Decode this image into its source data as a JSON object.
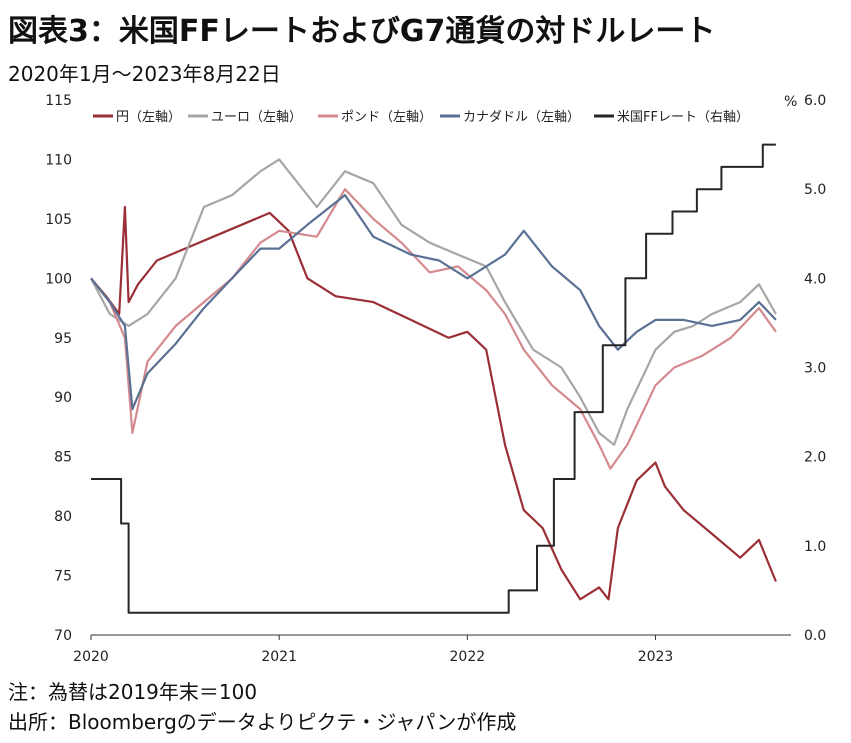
{
  "title": "図表3：米国FFレートおよびG7通貨の対ドルレート",
  "subtitle": "2020年1月〜2023年8月22日",
  "note": "注：為替は2019年末＝100",
  "source": "出所：Bloombergのデータよりピクテ・ジャパンが作成",
  "chart_data": {
    "type": "line",
    "x_labels": [
      "2020",
      "2021",
      "2022",
      "2023"
    ],
    "x_range": [
      "2020-01",
      "2023-08"
    ],
    "y_left": {
      "ylim": [
        70,
        115
      ],
      "ticks": [
        70,
        75,
        80,
        85,
        90,
        95,
        100,
        105,
        110,
        115
      ]
    },
    "y_right": {
      "unit": "%",
      "ylim": [
        0,
        6
      ],
      "ticks": [
        "0.0",
        "1.0",
        "2.0",
        "3.0",
        "4.0",
        "5.0",
        "6.0"
      ]
    },
    "legend_position": "top",
    "grid": false,
    "series": [
      {
        "name": "円（左軸）",
        "axis": "left",
        "color": "#9b2f37",
        "x": [
          2020.0,
          2020.08,
          2020.15,
          2020.18,
          2020.2,
          2020.25,
          2020.35,
          2020.5,
          2020.65,
          2020.8,
          2020.95,
          2021.05,
          2021.15,
          2021.3,
          2021.5,
          2021.7,
          2021.9,
          2022.0,
          2022.1,
          2022.2,
          2022.3,
          2022.4,
          2022.5,
          2022.6,
          2022.7,
          2022.75,
          2022.8,
          2022.9,
          2023.0,
          2023.05,
          2023.15,
          2023.3,
          2023.45,
          2023.55,
          2023.64
        ],
        "values": [
          100,
          98.5,
          97,
          106,
          98,
          99.5,
          101.5,
          102.5,
          103.5,
          104.5,
          105.5,
          104,
          100,
          98.5,
          98,
          96.5,
          95,
          95.5,
          94,
          86,
          80.5,
          79,
          75.5,
          73,
          74,
          73,
          79,
          83,
          84.5,
          82.5,
          80.5,
          78.5,
          76.5,
          78,
          74.5
        ]
      },
      {
        "name": "ユーロ（左軸）",
        "axis": "left",
        "color": "#a6a6a6",
        "x": [
          2020.0,
          2020.1,
          2020.2,
          2020.3,
          2020.45,
          2020.6,
          2020.75,
          2020.9,
          2021.0,
          2021.2,
          2021.35,
          2021.5,
          2021.65,
          2021.8,
          2021.95,
          2022.1,
          2022.2,
          2022.35,
          2022.5,
          2022.6,
          2022.7,
          2022.78,
          2022.85,
          2023.0,
          2023.1,
          2023.2,
          2023.3,
          2023.45,
          2023.55,
          2023.64
        ],
        "values": [
          100,
          97,
          96,
          97,
          100,
          106,
          107,
          109,
          110,
          106,
          109,
          108,
          104.5,
          103,
          102,
          101,
          98,
          94,
          92.5,
          90,
          87,
          86,
          89,
          94,
          95.5,
          96,
          97,
          98,
          99.5,
          97
        ]
      },
      {
        "name": "ポンド（左軸）",
        "axis": "left",
        "color": "#d48a8e",
        "x": [
          2020.0,
          2020.1,
          2020.18,
          2020.22,
          2020.3,
          2020.45,
          2020.6,
          2020.75,
          2020.9,
          2021.0,
          2021.2,
          2021.35,
          2021.5,
          2021.65,
          2021.8,
          2021.95,
          2022.1,
          2022.2,
          2022.3,
          2022.45,
          2022.6,
          2022.7,
          2022.76,
          2022.85,
          2023.0,
          2023.1,
          2023.25,
          2023.4,
          2023.55,
          2023.64
        ],
        "values": [
          100,
          98,
          95,
          87,
          93,
          96,
          98,
          100,
          103,
          104,
          103.5,
          107.5,
          105,
          103,
          100.5,
          101,
          99,
          97,
          94,
          91,
          89,
          86,
          84,
          86,
          91,
          92.5,
          93.5,
          95,
          97.5,
          95.5
        ]
      },
      {
        "name": "カナダドル（左軸）",
        "axis": "left",
        "color": "#5a7194",
        "x": [
          2020.0,
          2020.1,
          2020.18,
          2020.22,
          2020.3,
          2020.45,
          2020.6,
          2020.75,
          2020.9,
          2021.0,
          2021.15,
          2021.35,
          2021.5,
          2021.7,
          2021.85,
          2022.0,
          2022.2,
          2022.3,
          2022.45,
          2022.6,
          2022.7,
          2022.8,
          2022.9,
          2023.0,
          2023.15,
          2023.3,
          2023.45,
          2023.55,
          2023.64
        ],
        "values": [
          100,
          98,
          96,
          89,
          92,
          94.5,
          97.5,
          100,
          102.5,
          102.5,
          104.5,
          107,
          103.5,
          102,
          101.5,
          100,
          102,
          104,
          101,
          99,
          96,
          94,
          95.5,
          96.5,
          96.5,
          96,
          96.5,
          98,
          96.5
        ]
      },
      {
        "name": "米国FFレート（右軸）",
        "axis": "right",
        "color": "#262626",
        "step": true,
        "x": [
          2020.0,
          2020.16,
          2020.2,
          2022.22,
          2022.37,
          2022.46,
          2022.57,
          2022.72,
          2022.84,
          2022.95,
          2023.09,
          2023.22,
          2023.35,
          2023.57,
          2023.64
        ],
        "values": [
          1.75,
          1.25,
          0.25,
          0.5,
          1.0,
          1.75,
          2.5,
          3.25,
          4.0,
          4.5,
          4.75,
          5.0,
          5.25,
          5.5,
          5.5
        ]
      }
    ]
  }
}
